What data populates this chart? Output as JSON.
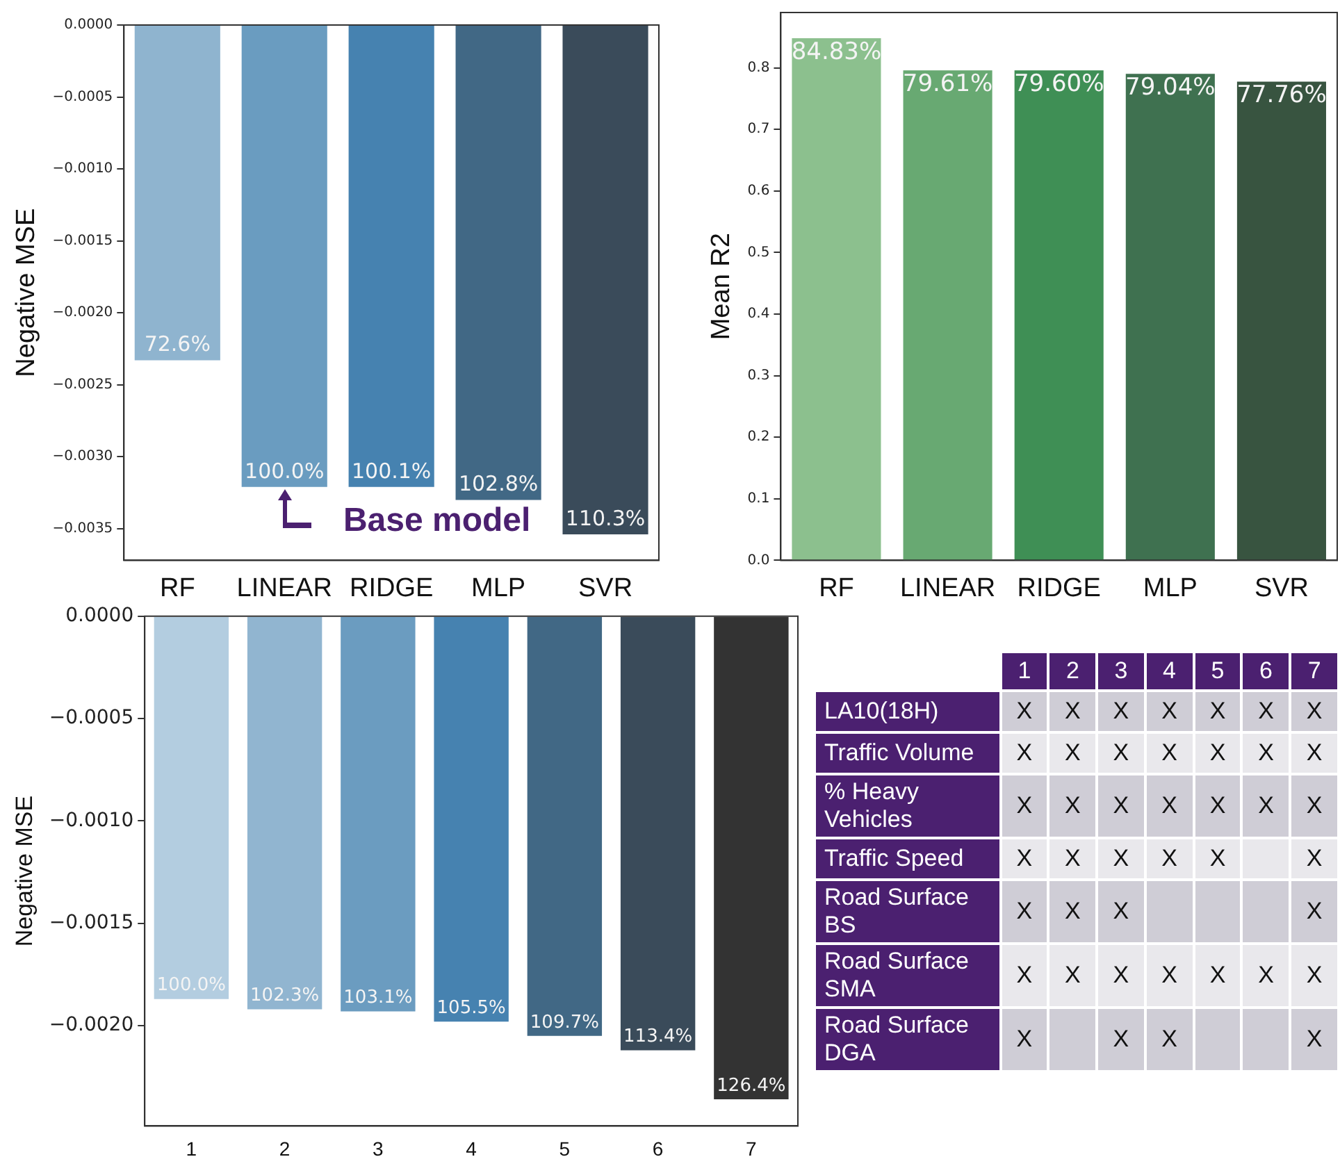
{
  "chart_data": [
    {
      "type": "bar",
      "ylabel": "Negative MSE",
      "categories": [
        "RF",
        "LINEAR",
        "RIDGE",
        "MLP",
        "SVR"
      ],
      "values": [
        -0.00233,
        -0.00321,
        -0.00321,
        -0.0033,
        -0.00354
      ],
      "colors": [
        "#8fb4cf",
        "#6a9cc0",
        "#4682b0",
        "#416885",
        "#3a4b5a"
      ],
      "ylim": [
        -0.00372,
        0
      ],
      "yticks": [
        {
          "value": 0,
          "label": "0.0000"
        },
        {
          "value": -0.0005,
          "label": "−0.0005"
        },
        {
          "value": -0.001,
          "label": "−0.0010"
        },
        {
          "value": -0.0015,
          "label": "−0.0015"
        },
        {
          "value": -0.002,
          "label": "−0.0020"
        },
        {
          "value": -0.0025,
          "label": "−0.0025"
        },
        {
          "value": -0.003,
          "label": "−0.0030"
        },
        {
          "value": -0.0035,
          "label": "−0.0035"
        }
      ],
      "annotations": [
        {
          "text": "72.6%",
          "x": "RF",
          "y": -0.00233
        },
        {
          "text": "100.0%",
          "x": "LINEAR",
          "y": -0.00321
        },
        {
          "text": "100.1%",
          "x": "RIDGE",
          "y": -0.00321
        },
        {
          "text": "102.8%",
          "x": "MLP",
          "y": -0.0033
        },
        {
          "text": "110.3%",
          "x": "SVR",
          "y": -0.00354
        },
        "Base model"
      ],
      "grid": false,
      "legend": false
    },
    {
      "type": "bar",
      "ylabel": "Mean R2",
      "categories": [
        "RF",
        "LINEAR",
        "RIDGE",
        "MLP",
        "SVR"
      ],
      "values": [
        0.8483,
        0.7961,
        0.796,
        0.7904,
        0.7776
      ],
      "colors": [
        "#8cc08e",
        "#68a972",
        "#3f8f55",
        "#3f7150",
        "#385440"
      ],
      "value_labels": [
        "84.83%",
        "79.61%",
        "79.60%",
        "79.04%",
        "77.76%"
      ],
      "ylim": [
        0,
        0.89
      ],
      "yticks": [
        {
          "value": 0,
          "label": "0.0"
        },
        0.1,
        0.2,
        0.3,
        0.4,
        0.5,
        0.6,
        0.7,
        0.8
      ],
      "grid": false,
      "legend": false
    },
    {
      "type": "bar",
      "ylabel": "Negative MSE",
      "categories": [
        "1",
        "2",
        "3",
        "4",
        "5",
        "6",
        "7"
      ],
      "values": [
        -0.00187,
        -0.00192,
        -0.00193,
        -0.00198,
        -0.00205,
        -0.00212,
        -0.00236
      ],
      "colors": [
        "#b3cde0",
        "#91b5d0",
        "#6b9cc0",
        "#4682b0",
        "#416885",
        "#3a4b5a",
        "#333333"
      ],
      "ylim": [
        -0.00249,
        0
      ],
      "yticks": [
        {
          "value": 0,
          "label": "0.0000"
        },
        {
          "value": -0.0005,
          "label": "−0.0005"
        },
        {
          "value": -0.001,
          "label": "−0.0010"
        },
        {
          "value": -0.0015,
          "label": "−0.0015"
        },
        {
          "value": -0.002,
          "label": "−0.0020"
        }
      ],
      "annotations": [
        {
          "text": "100.0%",
          "x": "1",
          "y": -0.00187
        },
        {
          "text": "102.3%",
          "x": "2",
          "y": -0.00192
        },
        {
          "text": "103.1%",
          "x": "3",
          "y": -0.00193
        },
        {
          "text": "105.5%",
          "x": "4",
          "y": -0.00198
        },
        {
          "text": "109.7%",
          "x": "5",
          "y": -0.00205
        },
        {
          "text": "113.4%",
          "x": "6",
          "y": -0.00212
        },
        {
          "text": "126.4%",
          "x": "7",
          "y": -0.00236
        }
      ],
      "grid": false,
      "legend": false
    },
    {
      "type": "heatmap",
      "categories": [
        "1",
        "2",
        "3",
        "4",
        "5",
        "6",
        "7"
      ],
      "y_categories": [
        "LA10(18H)",
        "Traffic Volume",
        "% Heavy Vehicles",
        "Traffic Speed",
        "Road Surface BS",
        "Road Surface SMA",
        "Road Surface DGA"
      ],
      "cells": [
        [
          "X",
          "X",
          "X",
          "X",
          "X",
          "X",
          "X"
        ],
        [
          "X",
          "X",
          "X",
          "X",
          "X",
          "X",
          "X"
        ],
        [
          "X",
          "X",
          "X",
          "X",
          "X",
          "X",
          "X"
        ],
        [
          "X",
          "X",
          "X",
          "X",
          "X",
          null,
          "X"
        ],
        [
          "X",
          "X",
          "X",
          null,
          null,
          null,
          "X"
        ],
        [
          "X",
          "X",
          "X",
          "X",
          "X",
          "X",
          "X"
        ],
        [
          "X",
          null,
          "X",
          "X",
          null,
          null,
          "X"
        ]
      ]
    }
  ]
}
